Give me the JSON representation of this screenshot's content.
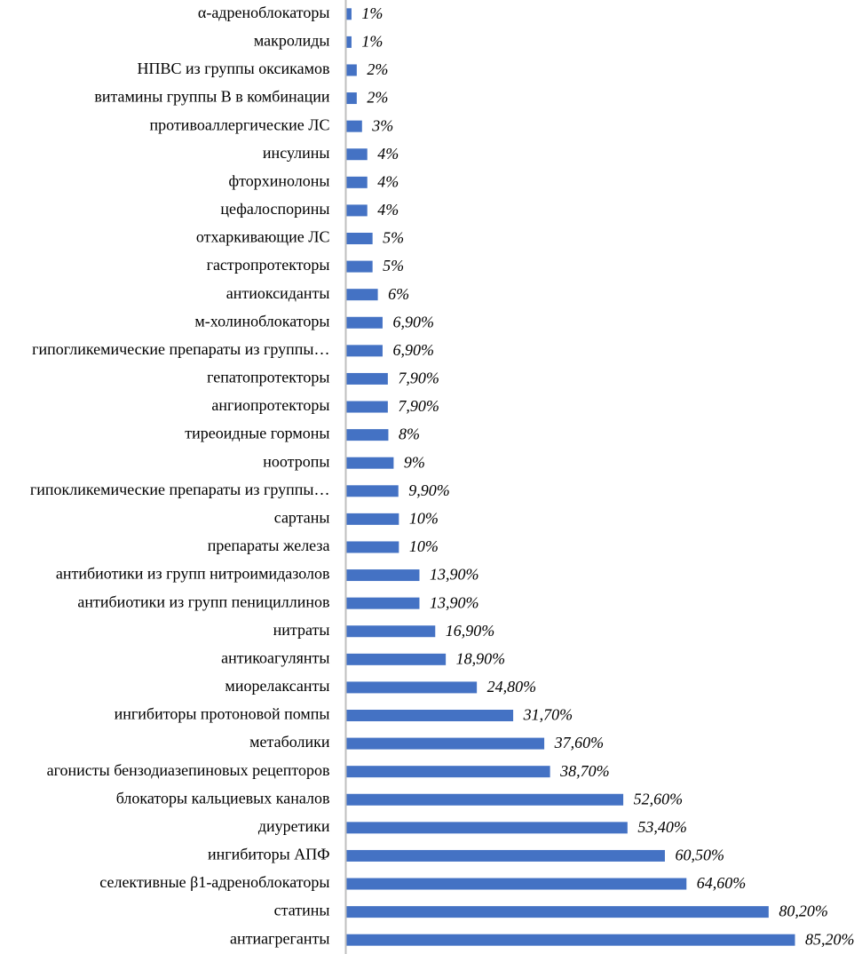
{
  "chart_data": {
    "type": "bar",
    "orientation": "horizontal",
    "title": "",
    "xlabel": "",
    "ylabel": "",
    "bar_color": "#4472C4",
    "axis_color": "#BFBFBF",
    "xlim": [
      0,
      85.2
    ],
    "series": [
      {
        "name": "",
        "values": [
          1,
          1,
          2,
          2,
          3,
          4,
          4,
          4,
          5,
          5,
          6,
          6.9,
          6.9,
          7.9,
          7.9,
          8,
          9,
          9.9,
          10,
          10,
          13.9,
          13.9,
          16.9,
          18.9,
          24.8,
          31.7,
          37.6,
          38.7,
          52.6,
          53.4,
          60.5,
          64.6,
          80.2,
          85.2
        ]
      }
    ],
    "categories": [
      "α-адреноблокаторы",
      "макролиды",
      "НПВС из группы оксикамов",
      "витамины группы В в комбинации",
      "противоаллергические ЛС",
      "инсулины",
      "фторхинолоны",
      "цефалоспорины",
      "отхаркивающие ЛС",
      "гастропротекторы",
      "антиоксиданты",
      "м-холиноблокаторы",
      "гипогликемические препараты из группы…",
      "гепатопротекторы",
      "ангиопротекторы",
      "тиреоидные гормоны",
      "ноотропы",
      "гипокликемические препараты из группы…",
      "сартаны",
      "препараты железа",
      "антибиотики из групп нитроимидазолов",
      "антибиотики из групп пенициллинов",
      "нитраты",
      "антикоагулянты",
      "миорелаксанты",
      "ингибиторы протоновой помпы",
      "метаболики",
      "агонисты бензодиазепиновых рецепторов",
      "блокаторы кальциевых каналов",
      "диуретики",
      "ингибиторы АПФ",
      "селективные β1-адреноблокаторы",
      "статины",
      "антиагреганты"
    ],
    "data_labels": [
      "1%",
      "1%",
      "2%",
      "2%",
      "3%",
      "4%",
      "4%",
      "4%",
      "5%",
      "5%",
      "6%",
      "6,90%",
      "6,90%",
      "7,90%",
      "7,90%",
      "8%",
      "9%",
      "9,90%",
      "10%",
      "10%",
      "13,90%",
      "13,90%",
      "16,90%",
      "18,90%",
      "24,80%",
      "31,70%",
      "37,60%",
      "38,70%",
      "52,60%",
      "53,40%",
      "60,50%",
      "64,60%",
      "80,20%",
      "85,20%"
    ]
  }
}
